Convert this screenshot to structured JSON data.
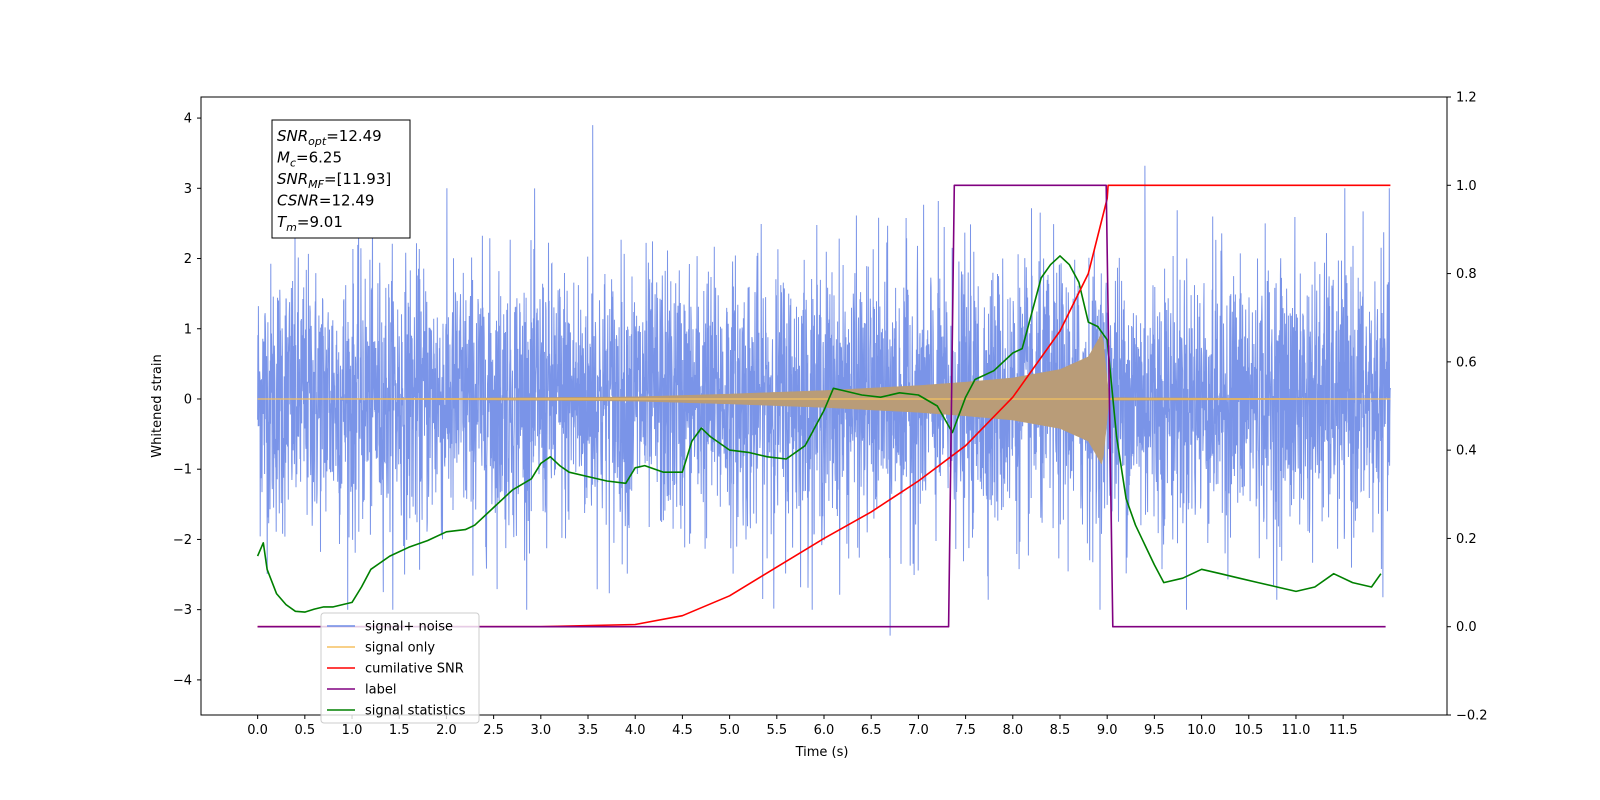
{
  "chart_data": {
    "type": "line",
    "xlabel": "Time (s)",
    "ylabel": "Whitened strain",
    "xlim": [
      -0.6,
      12.6
    ],
    "ylim": [
      -4.5,
      4.3
    ],
    "ylim_right": [
      -0.2,
      1.2
    ],
    "x_ticks": [
      0.0,
      0.5,
      1.0,
      1.5,
      2.0,
      2.5,
      3.0,
      3.5,
      4.0,
      4.5,
      5.0,
      5.5,
      6.0,
      6.5,
      7.0,
      7.5,
      8.0,
      8.5,
      9.0,
      9.5,
      10.0,
      10.5,
      11.0,
      11.5
    ],
    "x_tick_labels": [
      "0.0",
      "0.5",
      "1.0",
      "1.5",
      "2.0",
      "2.5",
      "3.0",
      "3.5",
      "4.0",
      "4.5",
      "5.0",
      "5.5",
      "6.0",
      "6.5",
      "7.0",
      "7.5",
      "8.0",
      "8.5",
      "9.0",
      "9.5",
      "10.0",
      "10.5",
      "11.0",
      "11.5"
    ],
    "y_ticks": [
      4,
      3,
      2,
      1,
      0,
      -1,
      -2,
      -3,
      -4
    ],
    "y_tick_labels": [
      "4",
      "3",
      "2",
      "1",
      "0",
      "−1",
      "−2",
      "−3",
      "−4"
    ],
    "y_ticks_right": [
      1.2,
      1.0,
      0.8,
      0.6,
      0.4,
      0.2,
      0.0,
      -0.2
    ],
    "y_tick_labels_right": [
      "1.2",
      "1.0",
      "0.8",
      "0.6",
      "0.4",
      "0.2",
      "0.0",
      "−0.2"
    ],
    "grid": false,
    "legend_position": "lower-left",
    "noise": {
      "x_range": [
        0.0,
        12.0
      ],
      "std": 0.95,
      "peaks": [
        {
          "x": 3.55,
          "y": 3.9
        },
        {
          "x": 9.4,
          "y": 3.32
        },
        {
          "x": 6.7,
          "y": -3.37
        }
      ]
    },
    "series": [
      {
        "name": "signal+ noise",
        "color": "#6f8be6",
        "axis": "left",
        "style": "noise"
      },
      {
        "name": "signal only",
        "color": "#f5c160",
        "axis": "left",
        "style": "chirp",
        "envelope_x": [
          0.0,
          2.0,
          4.0,
          5.0,
          6.0,
          7.0,
          7.5,
          8.0,
          8.5,
          8.8,
          8.95,
          9.02,
          9.05,
          12.0
        ],
        "envelope_y": [
          0.0,
          0.01,
          0.03,
          0.07,
          0.12,
          0.19,
          0.24,
          0.3,
          0.42,
          0.6,
          0.95,
          0.0,
          0.02,
          0.0
        ]
      },
      {
        "name": "cumilative SNR",
        "color": "#ff0000",
        "axis": "right",
        "x": [
          0.0,
          3.0,
          4.0,
          4.5,
          5.0,
          5.5,
          6.0,
          6.5,
          7.0,
          7.5,
          8.0,
          8.5,
          8.8,
          9.0,
          9.01,
          12.0
        ],
        "y": [
          0.0,
          0.0,
          0.005,
          0.025,
          0.07,
          0.135,
          0.2,
          0.26,
          0.33,
          0.41,
          0.52,
          0.67,
          0.8,
          0.97,
          1.0,
          1.0
        ]
      },
      {
        "name": "label",
        "color": "#800080",
        "axis": "right",
        "x": [
          0.0,
          7.32,
          7.38,
          8.99,
          9.06,
          11.95
        ],
        "y": [
          0.0,
          0.0,
          1.0,
          1.0,
          0.0,
          0.0
        ]
      },
      {
        "name": "signal statistics",
        "color": "#008000",
        "axis": "right",
        "x": [
          0.0,
          0.06,
          0.1,
          0.2,
          0.3,
          0.4,
          0.5,
          0.6,
          0.7,
          0.8,
          0.9,
          1.0,
          1.1,
          1.2,
          1.4,
          1.6,
          1.8,
          2.0,
          2.2,
          2.3,
          2.5,
          2.7,
          2.9,
          3.0,
          3.1,
          3.2,
          3.3,
          3.5,
          3.7,
          3.9,
          4.0,
          4.1,
          4.3,
          4.5,
          4.6,
          4.7,
          4.8,
          5.0,
          5.2,
          5.4,
          5.6,
          5.8,
          6.0,
          6.1,
          6.2,
          6.4,
          6.6,
          6.8,
          7.0,
          7.2,
          7.36,
          7.5,
          7.6,
          7.8,
          8.0,
          8.1,
          8.2,
          8.3,
          8.4,
          8.5,
          8.6,
          8.7,
          8.8,
          8.9,
          9.0,
          9.1,
          9.2,
          9.3,
          9.5,
          9.6,
          9.8,
          10.0,
          10.2,
          10.4,
          10.6,
          10.8,
          11.0,
          11.2,
          11.4,
          11.6,
          11.8,
          11.9
        ],
        "y": [
          0.16,
          0.19,
          0.13,
          0.075,
          0.05,
          0.035,
          0.033,
          0.04,
          0.045,
          0.045,
          0.05,
          0.055,
          0.09,
          0.13,
          0.16,
          0.18,
          0.195,
          0.215,
          0.22,
          0.23,
          0.27,
          0.31,
          0.335,
          0.37,
          0.385,
          0.365,
          0.35,
          0.34,
          0.33,
          0.325,
          0.36,
          0.365,
          0.35,
          0.35,
          0.42,
          0.45,
          0.43,
          0.4,
          0.395,
          0.385,
          0.38,
          0.41,
          0.49,
          0.54,
          0.535,
          0.525,
          0.52,
          0.53,
          0.525,
          0.5,
          0.44,
          0.52,
          0.56,
          0.58,
          0.62,
          0.63,
          0.71,
          0.79,
          0.82,
          0.84,
          0.82,
          0.78,
          0.69,
          0.68,
          0.65,
          0.43,
          0.29,
          0.23,
          0.14,
          0.1,
          0.11,
          0.13,
          0.12,
          0.11,
          0.1,
          0.09,
          0.08,
          0.09,
          0.12,
          0.1,
          0.09,
          0.12
        ]
      }
    ],
    "info_box": [
      {
        "base": "SNR",
        "sub": "opt",
        "value": "=12.49"
      },
      {
        "base": "M",
        "sub": "c",
        "value": "=6.25"
      },
      {
        "base": "SNR",
        "sub": "MF",
        "value": "=[11.93]"
      },
      {
        "base": "CSNR",
        "sub": "",
        "value": "=12.49"
      },
      {
        "base": "T",
        "sub": "m",
        "value": "=9.01"
      }
    ]
  }
}
